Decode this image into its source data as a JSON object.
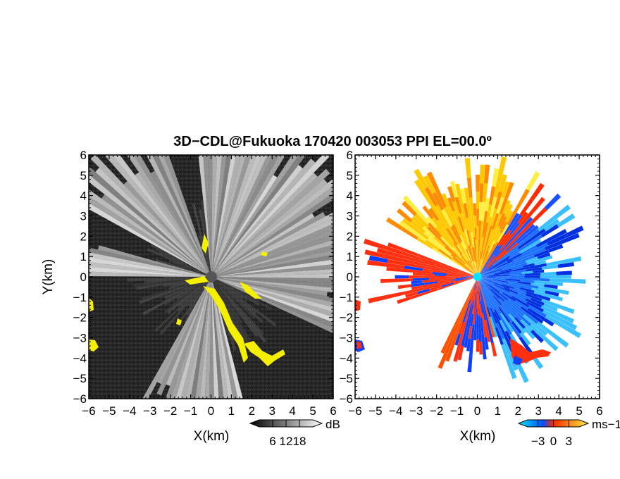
{
  "title": "3D−CDL@Fukuoka 170420 003053 PPI EL=00.0º",
  "chart_data": [
    {
      "type": "heatmap",
      "name": "reflectivity-ppi",
      "xlabel": "X(km)",
      "ylabel": "Y(km)",
      "xlim": [
        -6,
        6
      ],
      "ylim": [
        -6,
        6
      ],
      "ticks": [
        -6,
        -5,
        -4,
        -3,
        -2,
        -1,
        0,
        1,
        2,
        3,
        4,
        5,
        6
      ],
      "tick_labels": [
        "−6",
        "−5",
        "−4",
        "−3",
        "−2",
        "−1",
        "0",
        "1",
        "2",
        "3",
        "4",
        "5",
        "6"
      ],
      "colorbar": {
        "unit": "dB",
        "ticks": [
          6,
          12,
          18
        ],
        "min": 0,
        "max": 24,
        "colors": [
          "#000000",
          "#ffffff"
        ]
      },
      "background_color": "#262626",
      "highlight_color": "#f5f000"
    },
    {
      "type": "heatmap",
      "name": "doppler-velocity-ppi",
      "xlabel": "X(km)",
      "ylabel": "",
      "xlim": [
        -6,
        6
      ],
      "ylim": [
        -6,
        6
      ],
      "ticks": [
        -6,
        -5,
        -4,
        -3,
        -2,
        -1,
        0,
        1,
        2,
        3,
        4,
        5,
        6
      ],
      "tick_labels": [
        "−6",
        "−5",
        "−4",
        "−3",
        "−2",
        "−1",
        "0",
        "1",
        "2",
        "3",
        "4",
        "5",
        "6"
      ],
      "colorbar": {
        "unit": "ms−1",
        "ticks": [
          -3,
          0,
          3
        ],
        "tick_labels": [
          "−3",
          "0",
          "3"
        ],
        "min": -5,
        "max": 5,
        "colors": [
          "#00e5ff",
          "#0050ff",
          "#ff2a00",
          "#ffee40"
        ]
      },
      "background_color": "#ffffff"
    }
  ]
}
